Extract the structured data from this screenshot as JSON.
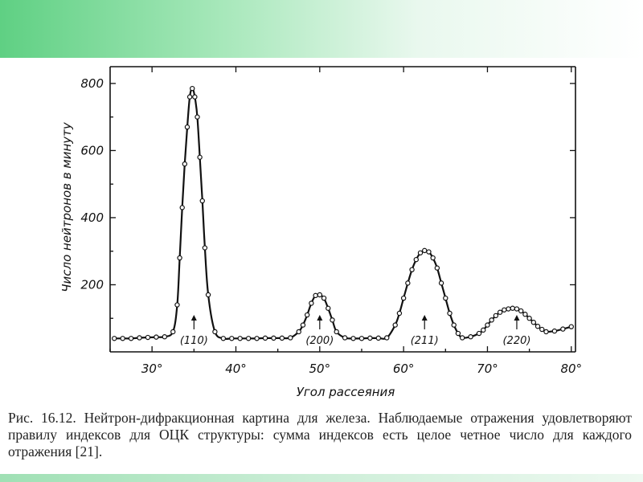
{
  "chart_data": {
    "type": "line",
    "title": "",
    "xlabel": "Угол рассеяния",
    "ylabel": "Число нейтронов в минуту",
    "xlim": [
      25,
      80.5
    ],
    "ylim": [
      0,
      850
    ],
    "x_ticks": [
      30,
      40,
      50,
      60,
      70,
      80
    ],
    "x_tick_labels": [
      "30°",
      "40°",
      "50°",
      "60°",
      "70°",
      "80°"
    ],
    "y_ticks": [
      200,
      400,
      600,
      800
    ],
    "y_tick_labels": [
      "200",
      "400",
      "600",
      "800"
    ],
    "grid": false,
    "legend": "none",
    "series": [
      {
        "x": [
          25.5,
          26.5,
          27.5,
          28.5,
          29.5,
          30.5,
          31.5,
          32.5,
          33.0,
          33.3,
          33.6,
          33.9,
          34.2,
          34.5,
          34.8,
          35.1,
          35.4,
          35.7,
          36.0,
          36.3,
          36.7,
          37.5,
          38.5,
          39.5,
          40.5,
          41.5,
          42.5,
          43.5,
          44.5,
          45.5,
          46.5,
          47.5,
          48.0,
          48.5,
          49.0,
          49.5,
          50.0,
          50.5,
          51.0,
          51.5,
          52.0,
          53.0,
          54.0,
          55.0,
          56.0,
          57.0,
          58.0,
          59.0,
          59.5,
          60.0,
          60.5,
          61.0,
          61.5,
          62.0,
          62.5,
          63.0,
          63.5,
          64.0,
          64.5,
          65.0,
          65.5,
          66.0,
          66.5,
          67.0,
          68.0,
          69.0,
          69.5,
          70.0,
          70.5,
          71.0,
          71.5,
          72.0,
          72.5,
          73.0,
          73.5,
          74.0,
          74.5,
          75.0,
          75.5,
          76.0,
          76.5,
          77.0,
          78.0,
          79.0,
          80.0
        ],
        "y": [
          40,
          40,
          40,
          42,
          43,
          44,
          45,
          60,
          140,
          280,
          430,
          560,
          670,
          760,
          785,
          760,
          700,
          580,
          450,
          310,
          170,
          60,
          40,
          40,
          40,
          40,
          40,
          41,
          41,
          41,
          42,
          60,
          80,
          110,
          145,
          168,
          170,
          160,
          130,
          95,
          60,
          42,
          40,
          40,
          41,
          41,
          42,
          80,
          115,
          160,
          205,
          245,
          275,
          295,
          302,
          298,
          280,
          250,
          205,
          160,
          115,
          80,
          55,
          42,
          45,
          55,
          65,
          80,
          95,
          108,
          118,
          125,
          128,
          130,
          128,
          122,
          112,
          100,
          88,
          76,
          67,
          60,
          62,
          68,
          75
        ]
      }
    ]
  },
  "peak_labels": [
    {
      "x": 35,
      "text": "(110)"
    },
    {
      "x": 50,
      "text": "(200)"
    },
    {
      "x": 62.5,
      "text": "(211)"
    },
    {
      "x": 73.5,
      "text": "(220)"
    }
  ],
  "caption": "Рис. 16.12. Нейтрон-дифракционная картина для железа. Наблюдаемые отражения удовлетворяют правилу индексов для ОЦК структуры: сумма индексов есть целое четное число для каждого отражения [21]."
}
